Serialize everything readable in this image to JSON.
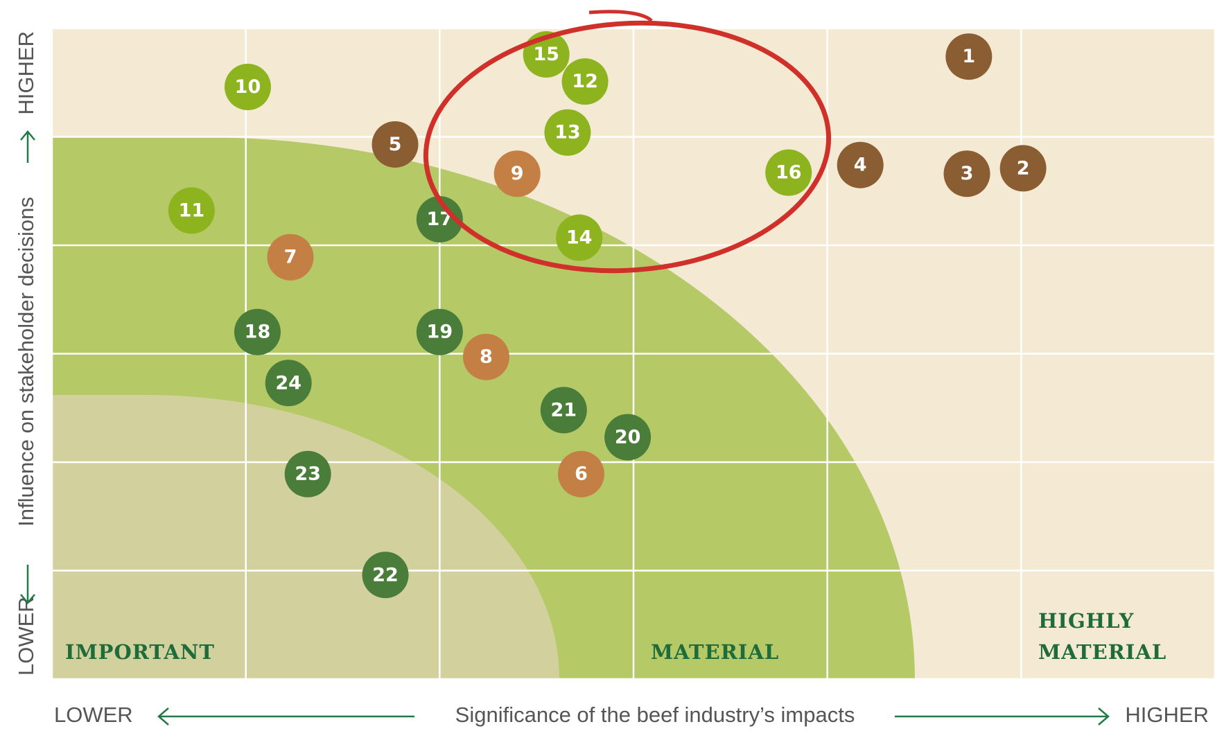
{
  "chart_data": {
    "type": "scatter",
    "ylabel": "Influence on stakeholder decisions",
    "xlabel": "Significance of the beef industry’s impacts",
    "ylow": "LOWER",
    "yhigh": "HIGHER",
    "xlow": "LOWER",
    "xhigh": "HIGHER",
    "zones": [
      [
        "IMPORTANT"
      ],
      [
        "MATERIAL"
      ],
      [
        "HIGHLY",
        "MATERIAL"
      ]
    ],
    "xlim": [
      0,
      6
    ],
    "ylim": [
      0,
      6
    ],
    "xticks": [
      0,
      1,
      2,
      3,
      4,
      5,
      6
    ],
    "yticks": [
      0,
      1,
      2,
      3,
      4,
      5,
      6
    ],
    "grid": true,
    "series": [
      {
        "color": "#8a5d33",
        "labels": [
          "1",
          "2",
          "3",
          "4",
          "5"
        ],
        "x": [
          4.73,
          5.01,
          4.72,
          4.17,
          1.77
        ],
        "values": [
          5.74,
          4.71,
          4.66,
          4.74,
          4.93
        ]
      },
      {
        "color": "#c47f45",
        "labels": [
          "6",
          "7",
          "8",
          "9"
        ],
        "x": [
          2.73,
          1.23,
          2.24,
          2.4
        ],
        "values": [
          1.89,
          3.89,
          2.97,
          4.66
        ]
      },
      {
        "color": "#8db41f",
        "labels": [
          "10",
          "11",
          "12",
          "13",
          "14",
          "15",
          "16"
        ],
        "x": [
          1.01,
          0.72,
          2.75,
          2.66,
          2.72,
          2.55,
          3.8
        ],
        "values": [
          5.46,
          4.32,
          5.51,
          5.04,
          4.07,
          5.76,
          4.67
        ]
      },
      {
        "color": "#4a7d3a",
        "labels": [
          "17",
          "18",
          "19",
          "20",
          "21",
          "22",
          "23",
          "24"
        ],
        "x": [
          2.0,
          1.06,
          2.0,
          2.97,
          2.64,
          1.72,
          1.32,
          1.22
        ],
        "values": [
          4.24,
          3.2,
          3.2,
          2.23,
          2.48,
          0.96,
          1.89,
          2.73
        ]
      }
    ]
  }
}
